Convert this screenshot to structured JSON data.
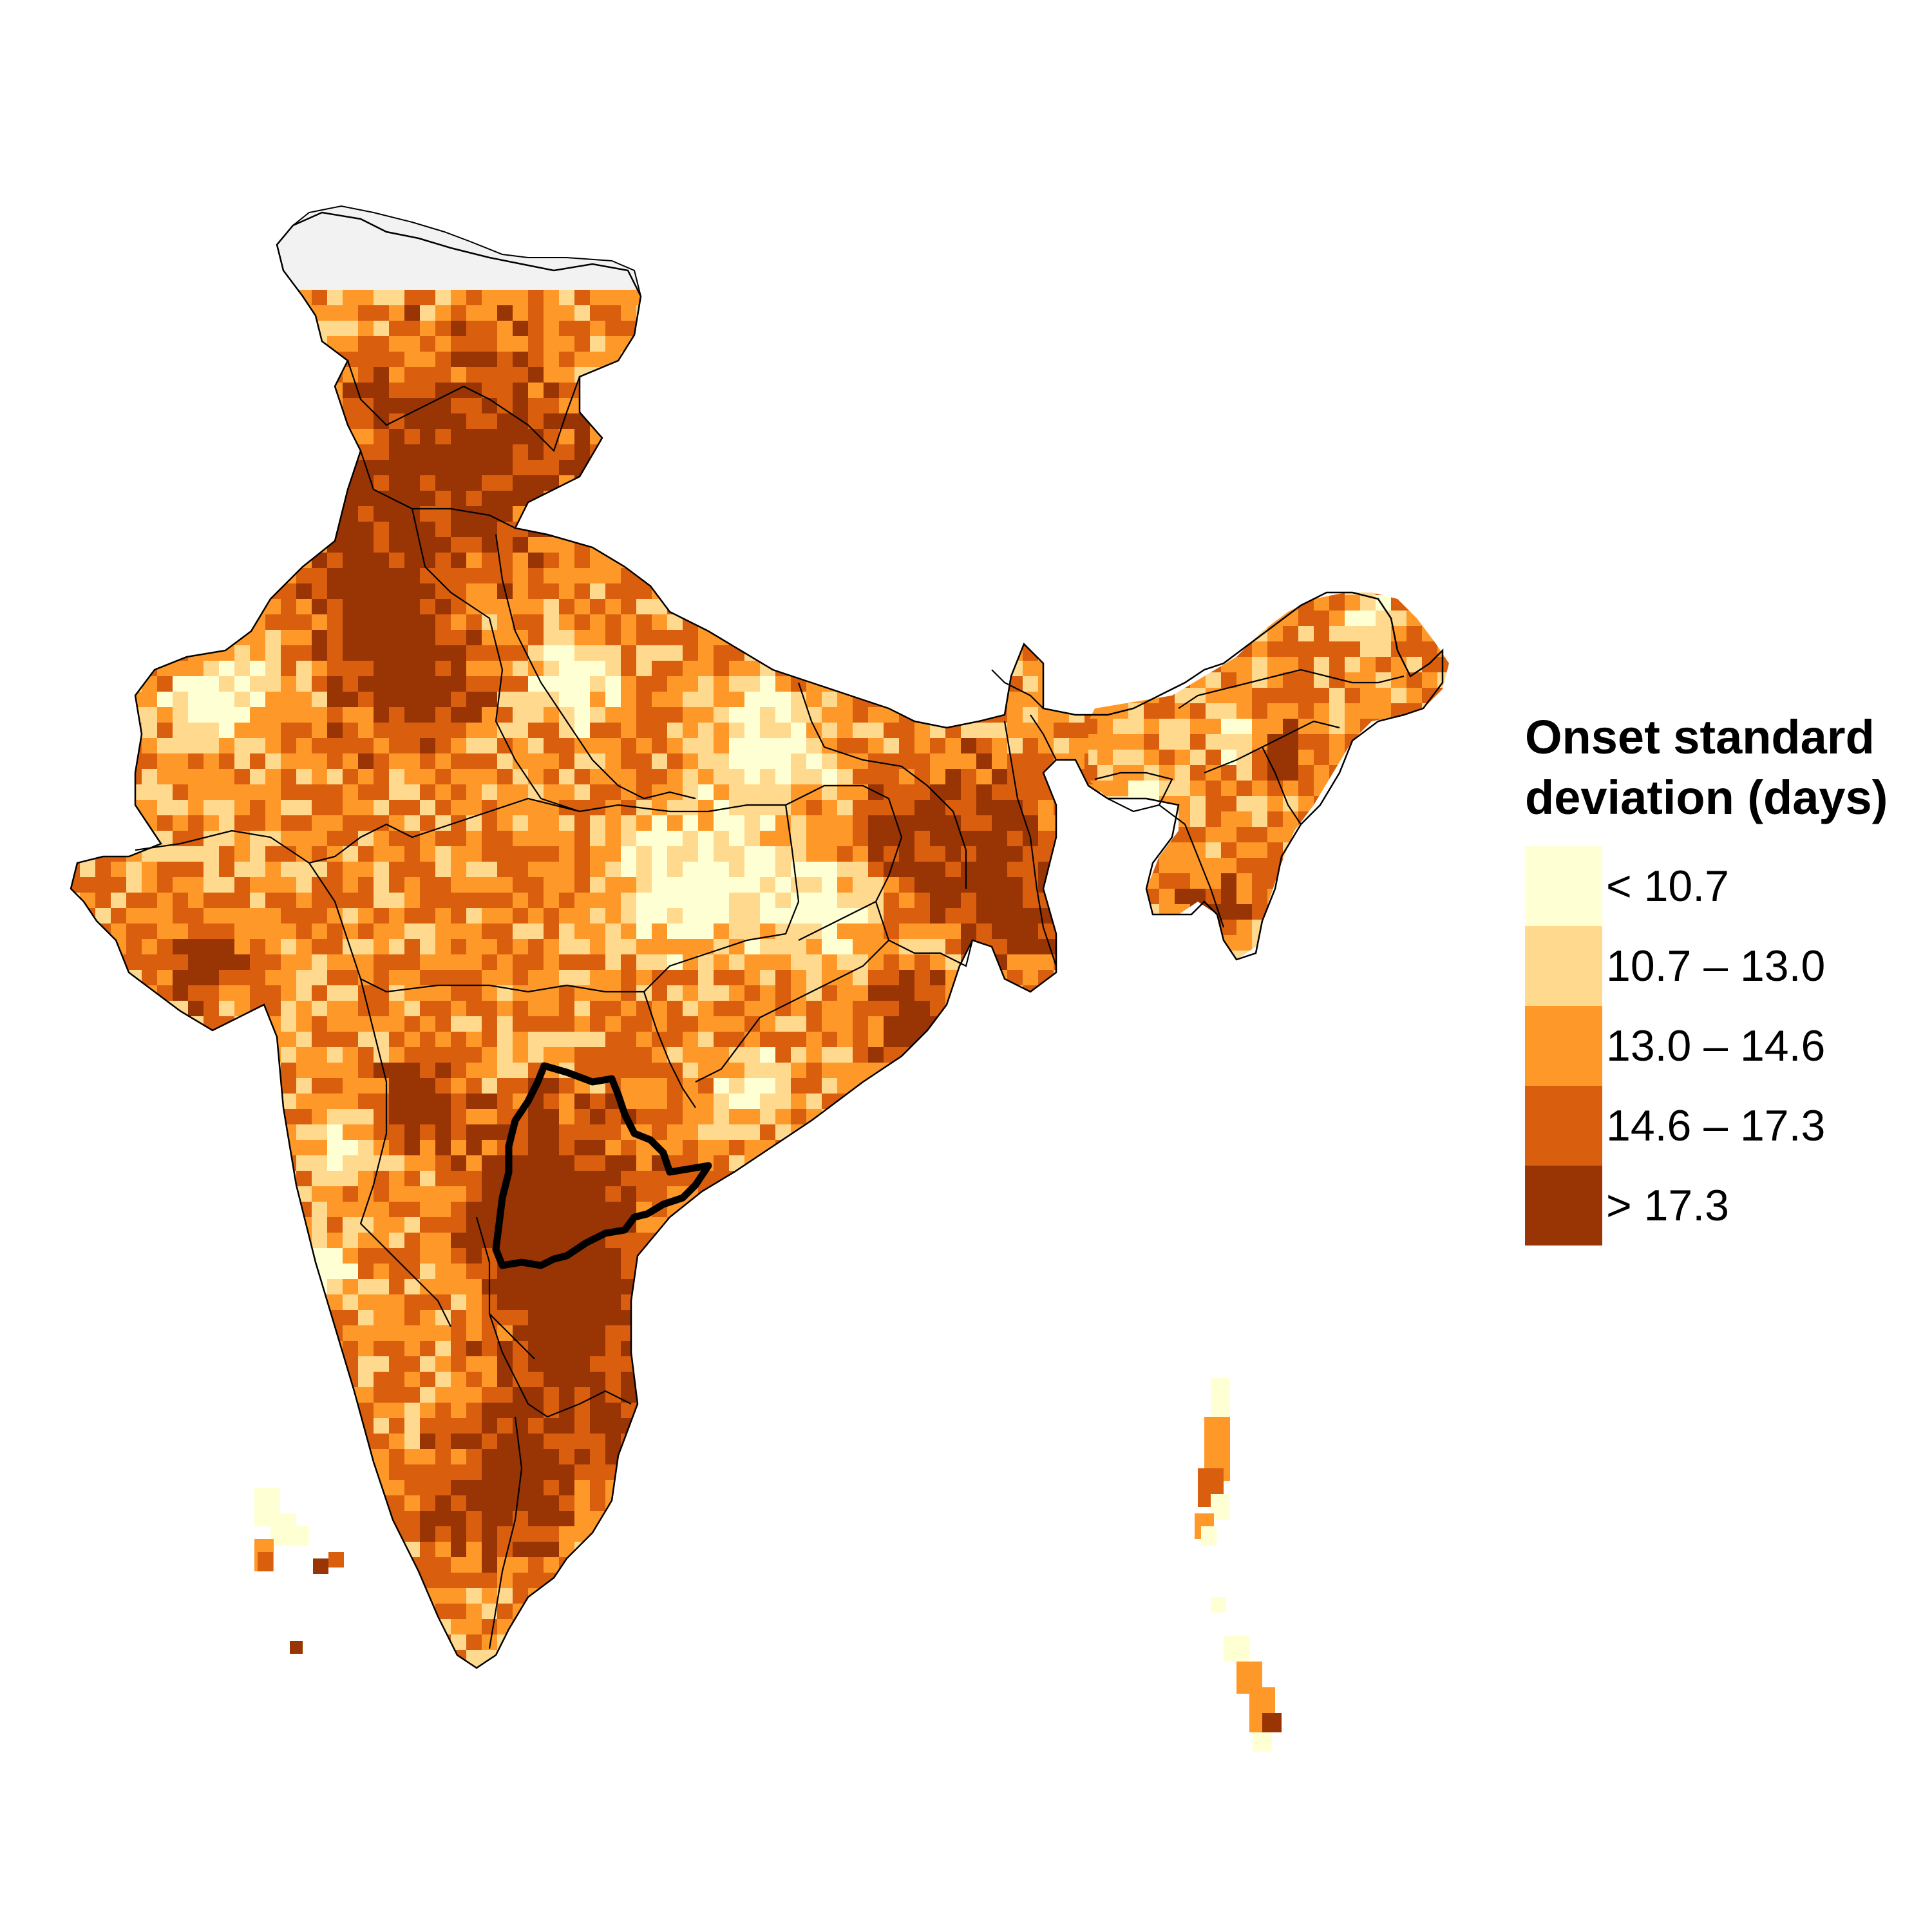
{
  "legend": {
    "title_line1": "Onset standard",
    "title_line2": "deviation (days)",
    "classes": [
      {
        "label": "< 10.7",
        "color": "#ffffd4"
      },
      {
        "label": "10.7 – 13.0",
        "color": "#fed98e"
      },
      {
        "label": "13.0 – 14.6",
        "color": "#fe9929"
      },
      {
        "label": "14.6 – 17.3",
        "color": "#d95f0e"
      },
      {
        "label": "> 17.3",
        "color": "#993404"
      }
    ],
    "nodata_color": "#f2f2f2"
  },
  "map": {
    "region": "India",
    "highlighted_region_outline_color": "#000000",
    "boundary_color": "#000000"
  }
}
